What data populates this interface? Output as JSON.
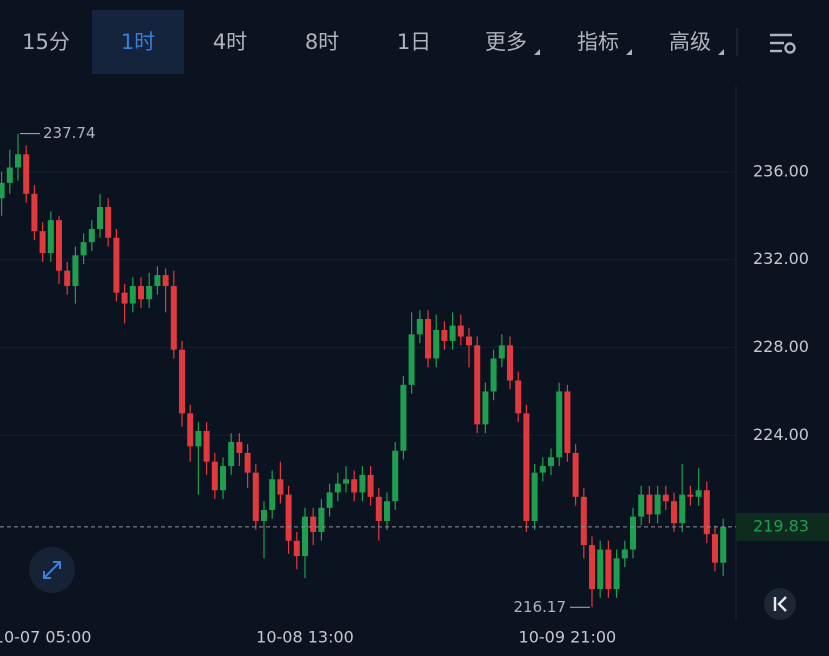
{
  "toolbar": {
    "tabs": [
      "15分",
      "1时",
      "4时",
      "8时",
      "1日",
      "更多",
      "指标",
      "高级"
    ],
    "active": 1
  },
  "chart_data": {
    "type": "candlestick",
    "categories": [
      null,
      null,
      null,
      null,
      null,
      "10-07 05:00",
      null,
      null,
      null,
      null,
      null,
      null,
      null,
      null,
      null,
      null,
      null,
      null,
      null,
      null,
      null,
      null,
      null,
      null,
      null,
      null,
      null,
      null,
      null,
      null,
      null,
      null,
      null,
      null,
      null,
      null,
      null,
      "10-08 13:00",
      null,
      null,
      null,
      null,
      null,
      null,
      null,
      null,
      null,
      null,
      null,
      null,
      null,
      null,
      null,
      null,
      null,
      null,
      null,
      null,
      null,
      null,
      null,
      null,
      null,
      null,
      null,
      null,
      null,
      null,
      null,
      "10-09 21:00",
      null,
      null,
      null,
      null,
      null,
      null,
      null,
      null,
      null,
      null,
      null,
      null,
      null,
      null,
      null,
      null,
      null,
      null,
      null
    ],
    "open": [
      234.8,
      235.5,
      236.2,
      236.8,
      235.0,
      233.3,
      232.3,
      233.8,
      231.5,
      230.8,
      232.2,
      232.8,
      233.4,
      234.4,
      233.0,
      230.5,
      230.0,
      230.8,
      230.2,
      230.8,
      231.3,
      230.8,
      227.9,
      225.0,
      223.5,
      224.2,
      222.8,
      221.5,
      222.6,
      223.7,
      223.2,
      222.3,
      220.1,
      220.6,
      222.0,
      221.3,
      219.2,
      218.5,
      220.3,
      219.6,
      220.7,
      221.4,
      221.8,
      222.0,
      221.4,
      222.2,
      221.2,
      220.1,
      221.0,
      223.3,
      226.3,
      228.6,
      229.3,
      227.5,
      228.8,
      228.3,
      229.0,
      228.5,
      228.1,
      224.5,
      226.0,
      227.5,
      228.1,
      226.5,
      225.0,
      220.1,
      222.3,
      222.6,
      223.0,
      226.0,
      223.2,
      221.2,
      219.0,
      217.0,
      218.8,
      217.0,
      218.4,
      218.8,
      220.3,
      221.3,
      220.4,
      221.3,
      221.0,
      220.0,
      221.3,
      221.2,
      221.5,
      219.5,
      218.2
    ],
    "high": [
      236.0,
      237.0,
      237.74,
      237.2,
      235.4,
      233.7,
      234.2,
      234.0,
      231.9,
      232.6,
      233.2,
      233.8,
      235.0,
      234.8,
      233.4,
      230.9,
      231.2,
      231.2,
      231.4,
      231.7,
      231.6,
      231.5,
      228.3,
      225.4,
      224.6,
      224.6,
      223.2,
      223.0,
      224.1,
      224.1,
      223.6,
      222.7,
      221.0,
      222.4,
      222.8,
      221.7,
      219.6,
      220.7,
      220.7,
      221.1,
      221.8,
      222.3,
      222.6,
      222.4,
      222.6,
      222.6,
      221.6,
      221.4,
      223.7,
      226.7,
      229.6,
      229.7,
      229.7,
      229.5,
      229.2,
      229.6,
      229.5,
      228.9,
      228.5,
      226.4,
      227.9,
      228.6,
      228.5,
      226.9,
      225.4,
      222.7,
      223.0,
      223.4,
      226.4,
      226.3,
      223.6,
      221.6,
      219.4,
      219.2,
      219.2,
      218.8,
      219.2,
      220.7,
      221.7,
      221.7,
      221.7,
      221.7,
      221.4,
      222.7,
      221.7,
      222.5,
      221.9,
      219.9,
      220.2
    ],
    "low": [
      234.0,
      235.0,
      235.6,
      234.6,
      232.9,
      231.9,
      231.9,
      230.9,
      230.4,
      230.0,
      231.8,
      232.4,
      233.0,
      232.6,
      230.1,
      229.1,
      229.6,
      229.8,
      229.8,
      230.4,
      229.6,
      227.5,
      224.4,
      222.8,
      221.3,
      222.2,
      221.1,
      221.1,
      222.2,
      222.6,
      221.6,
      219.7,
      218.4,
      220.2,
      220.9,
      218.6,
      217.9,
      217.5,
      219.0,
      219.2,
      220.3,
      221.0,
      221.4,
      221.0,
      221.0,
      220.8,
      219.2,
      219.7,
      220.6,
      222.9,
      225.9,
      228.2,
      227.1,
      227.1,
      227.9,
      227.9,
      228.1,
      227.1,
      224.1,
      224.1,
      225.6,
      227.1,
      226.1,
      224.6,
      219.6,
      219.7,
      221.9,
      222.2,
      222.6,
      222.8,
      220.8,
      218.4,
      216.17,
      216.6,
      216.6,
      216.6,
      218.0,
      218.4,
      219.9,
      220.0,
      220.0,
      220.6,
      219.6,
      219.6,
      220.8,
      220.8,
      219.1,
      217.8,
      217.6
    ],
    "close": [
      235.5,
      236.2,
      236.8,
      235.0,
      233.3,
      232.3,
      233.8,
      231.5,
      230.8,
      232.2,
      232.8,
      233.4,
      234.4,
      233.0,
      230.5,
      230.0,
      230.8,
      230.2,
      230.8,
      231.3,
      230.8,
      227.9,
      225.0,
      223.5,
      224.2,
      222.8,
      221.5,
      222.6,
      223.7,
      223.2,
      222.3,
      220.1,
      220.6,
      222.0,
      221.3,
      219.2,
      218.5,
      220.3,
      219.6,
      220.7,
      221.4,
      221.8,
      222.0,
      221.4,
      222.2,
      221.2,
      220.1,
      221.0,
      223.3,
      226.3,
      228.6,
      229.3,
      227.5,
      228.8,
      228.3,
      229.0,
      228.5,
      228.1,
      224.5,
      226.0,
      227.5,
      228.1,
      226.5,
      225.0,
      220.1,
      222.3,
      222.6,
      223.0,
      226.0,
      223.2,
      221.2,
      219.0,
      217.0,
      218.8,
      217.0,
      218.4,
      218.8,
      220.3,
      221.3,
      220.4,
      221.3,
      221.0,
      220.0,
      221.3,
      221.2,
      221.5,
      219.5,
      218.2,
      219.83
    ],
    "up_color": "#1e9e4f",
    "down_color": "#e0393e",
    "ylim": [
      215.59,
      239.91
    ],
    "yticks": [
      {
        "value": 224,
        "label": "224.00"
      },
      {
        "value": 228,
        "label": "228.00"
      },
      {
        "value": 232,
        "label": "232.00"
      },
      {
        "value": 236,
        "label": "236.00"
      }
    ],
    "grid": true
  }
}
